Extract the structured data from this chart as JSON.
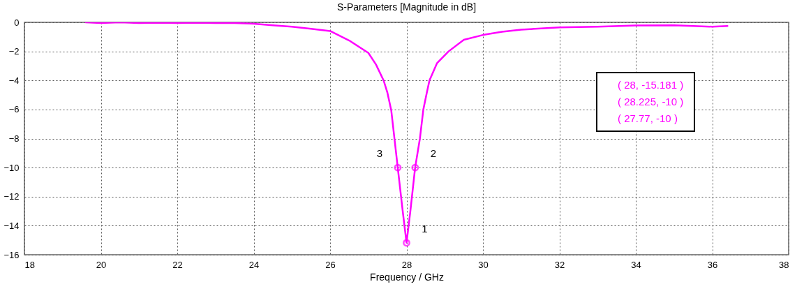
{
  "chart_data": {
    "type": "line",
    "title": "S-Parameters [Magnitude in dB]",
    "xlabel": "Frequency / GHz",
    "xlim": [
      18,
      38
    ],
    "ylim": [
      -16,
      0
    ],
    "xticks": [
      18,
      20,
      22,
      24,
      26,
      28,
      30,
      32,
      34,
      36,
      38
    ],
    "yticks": [
      -16,
      -14,
      -12,
      -10,
      -8,
      -6,
      -4,
      -2,
      0
    ],
    "grid": true,
    "series": [
      {
        "color": "#ff00ff",
        "x": [
          19.6,
          20,
          20.5,
          21,
          21.5,
          22,
          22.5,
          23,
          23.5,
          24,
          24.5,
          25,
          25.5,
          26,
          26.5,
          27,
          27.2,
          27.4,
          27.5,
          27.6,
          27.77,
          27.9,
          28,
          28.1,
          28.225,
          28.35,
          28.44,
          28.53,
          28.6,
          28.8,
          29.1,
          29.5,
          30,
          30.5,
          31,
          32,
          33,
          34,
          35,
          35.5,
          36,
          36.4
        ],
        "values": [
          0,
          -0.05,
          0,
          -0.05,
          -0.03,
          -0.05,
          -0.03,
          -0.05,
          -0.05,
          -0.1,
          -0.2,
          -0.3,
          -0.45,
          -0.6,
          -1.25,
          -2.1,
          -2.9,
          -4,
          -4.85,
          -6.06,
          -10,
          -13,
          -15.181,
          -13,
          -10,
          -8,
          -6,
          -4.85,
          -4,
          -2.8,
          -2,
          -1.2,
          -0.87,
          -0.65,
          -0.5,
          -0.35,
          -0.3,
          -0.22,
          -0.2,
          -0.25,
          -0.3,
          -0.25
        ]
      },
      {
        "type": "scatter",
        "color": "#ff00ff",
        "marker": "circle",
        "x": [
          28,
          28.225,
          27.77
        ],
        "values": [
          -15.181,
          -10,
          -10
        ]
      }
    ],
    "annotations": [
      {
        "text": "1",
        "x": 28,
        "y": -15.181
      },
      {
        "text": "2",
        "x": 28.225,
        "y": -10
      },
      {
        "text": "3",
        "x": 27.77,
        "y": -10
      },
      "( 28, -15.181 )",
      "( 28.225, -10 )",
      "( 27.77, -10 )"
    ]
  }
}
